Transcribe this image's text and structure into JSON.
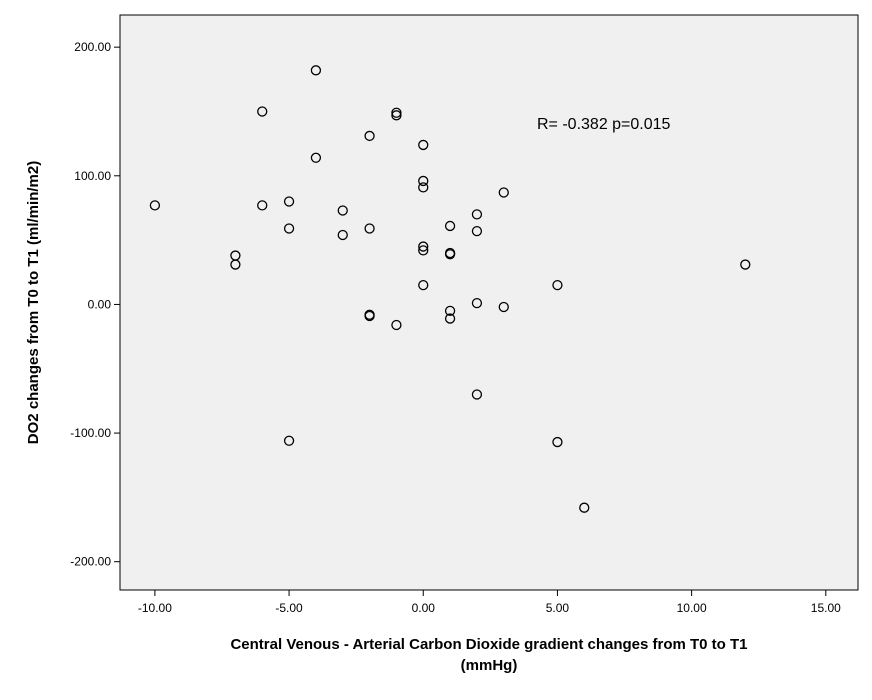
{
  "chart_data": {
    "type": "scatter",
    "title": "",
    "xlabel_lines": [
      "Central Venous - Arterial Carbon Dioxide gradient changes from T0 to T1",
      "(mmHg)"
    ],
    "ylabel": "DO2 changes from T0 to T1 (ml/min/m2)",
    "xlim": [
      -11.3,
      16.2
    ],
    "ylim": [
      -222,
      225
    ],
    "x_ticks": [
      -10,
      -5,
      0,
      5,
      10,
      15
    ],
    "x_tick_labels": [
      "-10.00",
      "-5.00",
      "0.00",
      "5.00",
      "10.00",
      "15.00"
    ],
    "y_ticks": [
      -200,
      -100,
      0,
      100,
      200
    ],
    "y_tick_labels": [
      "-200.00",
      "-100.00",
      "0.00",
      "100.00",
      "200.00"
    ],
    "grid": false,
    "plot_background": "#f0f0f0",
    "marker": "open-circle",
    "annotation": "R= -0.382 p=0.015",
    "points": [
      {
        "x": -10,
        "y": 77
      },
      {
        "x": -7,
        "y": 38
      },
      {
        "x": -7,
        "y": 31
      },
      {
        "x": -6,
        "y": 150
      },
      {
        "x": -6,
        "y": 77
      },
      {
        "x": -5,
        "y": 80
      },
      {
        "x": -5,
        "y": 59
      },
      {
        "x": -5,
        "y": -106
      },
      {
        "x": -4,
        "y": 182
      },
      {
        "x": -4,
        "y": 114
      },
      {
        "x": -3,
        "y": 73
      },
      {
        "x": -3,
        "y": 54
      },
      {
        "x": -2,
        "y": 131
      },
      {
        "x": -2,
        "y": 59
      },
      {
        "x": -2,
        "y": -8
      },
      {
        "x": -2,
        "y": -9
      },
      {
        "x": -1,
        "y": 149
      },
      {
        "x": -1,
        "y": 147
      },
      {
        "x": -1,
        "y": -16
      },
      {
        "x": 0,
        "y": 124
      },
      {
        "x": 0,
        "y": 96
      },
      {
        "x": 0,
        "y": 91
      },
      {
        "x": 0,
        "y": 45
      },
      {
        "x": 0,
        "y": 42
      },
      {
        "x": 0,
        "y": 15
      },
      {
        "x": 1,
        "y": 61
      },
      {
        "x": 1,
        "y": 40
      },
      {
        "x": 1,
        "y": 39
      },
      {
        "x": 1,
        "y": -5
      },
      {
        "x": 1,
        "y": -11
      },
      {
        "x": 2,
        "y": 70
      },
      {
        "x": 2,
        "y": 57
      },
      {
        "x": 2,
        "y": 1
      },
      {
        "x": 2,
        "y": -70
      },
      {
        "x": 3,
        "y": 87
      },
      {
        "x": 3,
        "y": -2
      },
      {
        "x": 5,
        "y": 15
      },
      {
        "x": 5,
        "y": -107
      },
      {
        "x": 6,
        "y": -158
      },
      {
        "x": 12,
        "y": 31
      }
    ]
  }
}
